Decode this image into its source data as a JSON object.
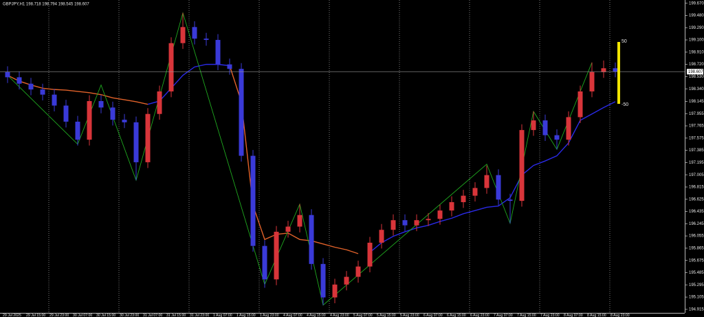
{
  "chart_data": {
    "type": "candlestick",
    "title": "GBPJPY,H1  198.718 198.794 198.545 198.607",
    "categories": [
      "29 Jul 2025",
      null,
      "29 Jul 15:00",
      null,
      "29 Jul 23:00",
      null,
      "30 Jul 07:00",
      null,
      "30 Jul 15:00",
      null,
      "30 Jul 23:00",
      null,
      "31 Jul 07:00",
      null,
      "31 Jul 15:00",
      null,
      "31 Jul 23:00",
      null,
      "1 Aug 07:00",
      null,
      "1 Aug 15:00",
      null,
      "1 Aug 23:00",
      null,
      "4 Aug 07:00",
      null,
      "4 Aug 15:00",
      null,
      "4 Aug 23:00",
      null,
      "5 Aug 07:00",
      null,
      "5 Aug 15:00",
      null,
      "5 Aug 23:00",
      null,
      "6 Aug 07:00",
      null,
      "6 Aug 15:00",
      null,
      "6 Aug 23:00",
      null,
      "7 Aug 07:00",
      null,
      "7 Aug 15:00",
      null,
      "7 Aug 23:00",
      null,
      "8 Aug 07:00",
      null,
      "8 Aug 15:00",
      null,
      "8 Aug 23:00"
    ],
    "open": [
      198.6,
      198.52,
      198.42,
      198.33,
      198.25,
      198.08,
      197.83,
      197.55,
      198.15,
      198.05,
      197.86,
      197.82,
      197.2,
      197.95,
      198.3,
      199.05,
      199.3,
      199.12,
      199.1,
      198.72,
      198.65,
      197.3,
      195.9,
      195.38,
      196.12,
      196.2,
      196.38,
      195.62,
      195.1,
      195.3,
      195.42,
      195.58,
      195.95,
      196.15,
      196.3,
      196.22,
      196.3,
      196.32,
      196.45,
      196.58,
      196.68,
      196.8,
      197.0,
      196.62,
      196.6,
      197.7,
      197.85,
      197.62,
      197.55,
      197.9,
      198.3,
      198.6,
      198.66
    ],
    "high": [
      198.69,
      198.61,
      198.51,
      198.42,
      198.34,
      198.17,
      197.92,
      198.24,
      198.24,
      198.14,
      197.95,
      197.91,
      198.04,
      198.39,
      199.14,
      199.52,
      199.39,
      199.21,
      199.19,
      198.81,
      198.74,
      197.39,
      195.99,
      196.21,
      196.29,
      196.55,
      196.47,
      195.71,
      195.39,
      195.51,
      195.67,
      196.04,
      196.24,
      196.39,
      196.39,
      196.39,
      196.41,
      196.54,
      196.67,
      196.77,
      196.89,
      197.15,
      197.09,
      196.71,
      197.79,
      197.99,
      197.94,
      197.71,
      197.99,
      198.39,
      198.75,
      198.78,
      198.75
    ],
    "low": [
      198.43,
      198.33,
      198.24,
      198.16,
      197.99,
      197.74,
      197.46,
      197.46,
      197.96,
      197.77,
      197.73,
      196.92,
      197.11,
      197.86,
      198.21,
      198.96,
      199.03,
      199.01,
      198.63,
      198.56,
      197.21,
      195.81,
      195.25,
      195.29,
      196.03,
      196.11,
      195.53,
      194.98,
      195.01,
      195.21,
      195.33,
      195.49,
      195.86,
      196.06,
      196.13,
      196.13,
      196.21,
      196.23,
      196.36,
      196.49,
      196.59,
      196.71,
      196.53,
      196.25,
      196.51,
      197.61,
      197.53,
      197.4,
      197.46,
      197.81,
      198.21,
      198.51,
      198.52
    ],
    "close": [
      198.52,
      198.42,
      198.33,
      198.25,
      198.08,
      197.83,
      197.55,
      198.15,
      198.05,
      197.86,
      197.82,
      197.2,
      197.95,
      198.3,
      199.05,
      199.3,
      199.12,
      199.1,
      198.72,
      198.65,
      197.3,
      195.9,
      195.38,
      196.12,
      196.2,
      196.38,
      195.62,
      195.1,
      195.3,
      195.42,
      195.58,
      195.95,
      196.15,
      196.3,
      196.22,
      196.3,
      196.32,
      196.45,
      196.58,
      196.68,
      196.8,
      197.0,
      196.62,
      196.6,
      197.7,
      197.85,
      197.62,
      197.55,
      197.9,
      198.3,
      198.6,
      198.66,
      198.607
    ],
    "up_color": "#d8353a",
    "down_color": "#3a3ad8",
    "series": [
      {
        "color": "#e2622a",
        "values": [
          198.55,
          198.46,
          198.4,
          198.35,
          198.33,
          198.32,
          198.3,
          198.28,
          198.25,
          198.2,
          198.17,
          198.14,
          198.1,
          null,
          null,
          null,
          null,
          null,
          null,
          198.7,
          198.14,
          196.53,
          196.0,
          196.08,
          196.1,
          196.0,
          195.98,
          195.93,
          195.88,
          195.84,
          195.78,
          null,
          null,
          null,
          null,
          null,
          null,
          null,
          null,
          null,
          null,
          null,
          null,
          null,
          null,
          null,
          null,
          null,
          null,
          null,
          null,
          null,
          null
        ]
      },
      {
        "color": "#2a2ae8",
        "values": [
          null,
          null,
          null,
          null,
          null,
          null,
          null,
          null,
          null,
          null,
          null,
          null,
          198.1,
          198.15,
          198.35,
          198.55,
          198.68,
          198.72,
          198.72,
          198.7,
          null,
          null,
          null,
          null,
          null,
          null,
          null,
          null,
          null,
          null,
          null,
          195.8,
          195.95,
          196.05,
          196.12,
          196.18,
          196.22,
          196.28,
          196.33,
          196.4,
          196.45,
          196.5,
          196.52,
          196.65,
          197.0,
          197.15,
          197.22,
          197.3,
          197.5,
          197.85,
          197.95,
          198.05,
          198.14
        ]
      }
    ],
    "zigzag": {
      "color": "#1fa81f",
      "connect_gaps": true,
      "values": [
        198.55,
        null,
        null,
        null,
        null,
        null,
        197.48,
        null,
        198.4,
        null,
        null,
        196.92,
        null,
        null,
        null,
        199.52,
        null,
        null,
        null,
        null,
        null,
        null,
        195.3,
        null,
        null,
        196.55,
        null,
        194.98,
        null,
        null,
        null,
        null,
        null,
        null,
        null,
        null,
        null,
        null,
        null,
        null,
        null,
        197.17,
        null,
        196.25,
        null,
        197.99,
        null,
        197.4,
        null,
        null,
        198.75,
        null,
        null
      ]
    },
    "current_price": 198.607,
    "levels": [
      50,
      -50
    ],
    "level_color": "#f2e600",
    "ylim": [
      194.86,
      199.72
    ],
    "yticks": [
      {
        "value": 199.67,
        "label": "199.670"
      },
      {
        "value": 199.48,
        "label": "199.480"
      },
      {
        "value": 199.29,
        "label": "199.290"
      },
      {
        "value": 199.1,
        "label": "199.100"
      },
      {
        "value": 198.91,
        "label": "198.910"
      },
      {
        "value": 198.72,
        "label": "198.720"
      },
      {
        "value": 198.53,
        "label": "198.530"
      },
      {
        "value": 198.34,
        "label": "198.340"
      },
      {
        "value": 198.145,
        "label": "198.145"
      },
      {
        "value": 197.955,
        "label": "197.955"
      },
      {
        "value": 197.765,
        "label": "197.765"
      },
      {
        "value": 197.575,
        "label": "197.575"
      },
      {
        "value": 197.385,
        "label": "197.385"
      },
      {
        "value": 197.195,
        "label": "197.195"
      },
      {
        "value": 197.005,
        "label": "197.005"
      },
      {
        "value": 196.815,
        "label": "196.815"
      },
      {
        "value": 196.625,
        "label": "196.625"
      },
      {
        "value": 196.435,
        "label": "196.435"
      },
      {
        "value": 196.245,
        "label": "196.245"
      },
      {
        "value": 196.055,
        "label": "196.055"
      },
      {
        "value": 195.865,
        "label": "195.865"
      },
      {
        "value": 195.675,
        "label": "195.675"
      },
      {
        "value": 195.485,
        "label": "195.485"
      },
      {
        "value": 195.295,
        "label": "195.295"
      },
      {
        "value": 195.105,
        "label": "195.105"
      },
      {
        "value": 194.915,
        "label": "194.915"
      }
    ]
  }
}
